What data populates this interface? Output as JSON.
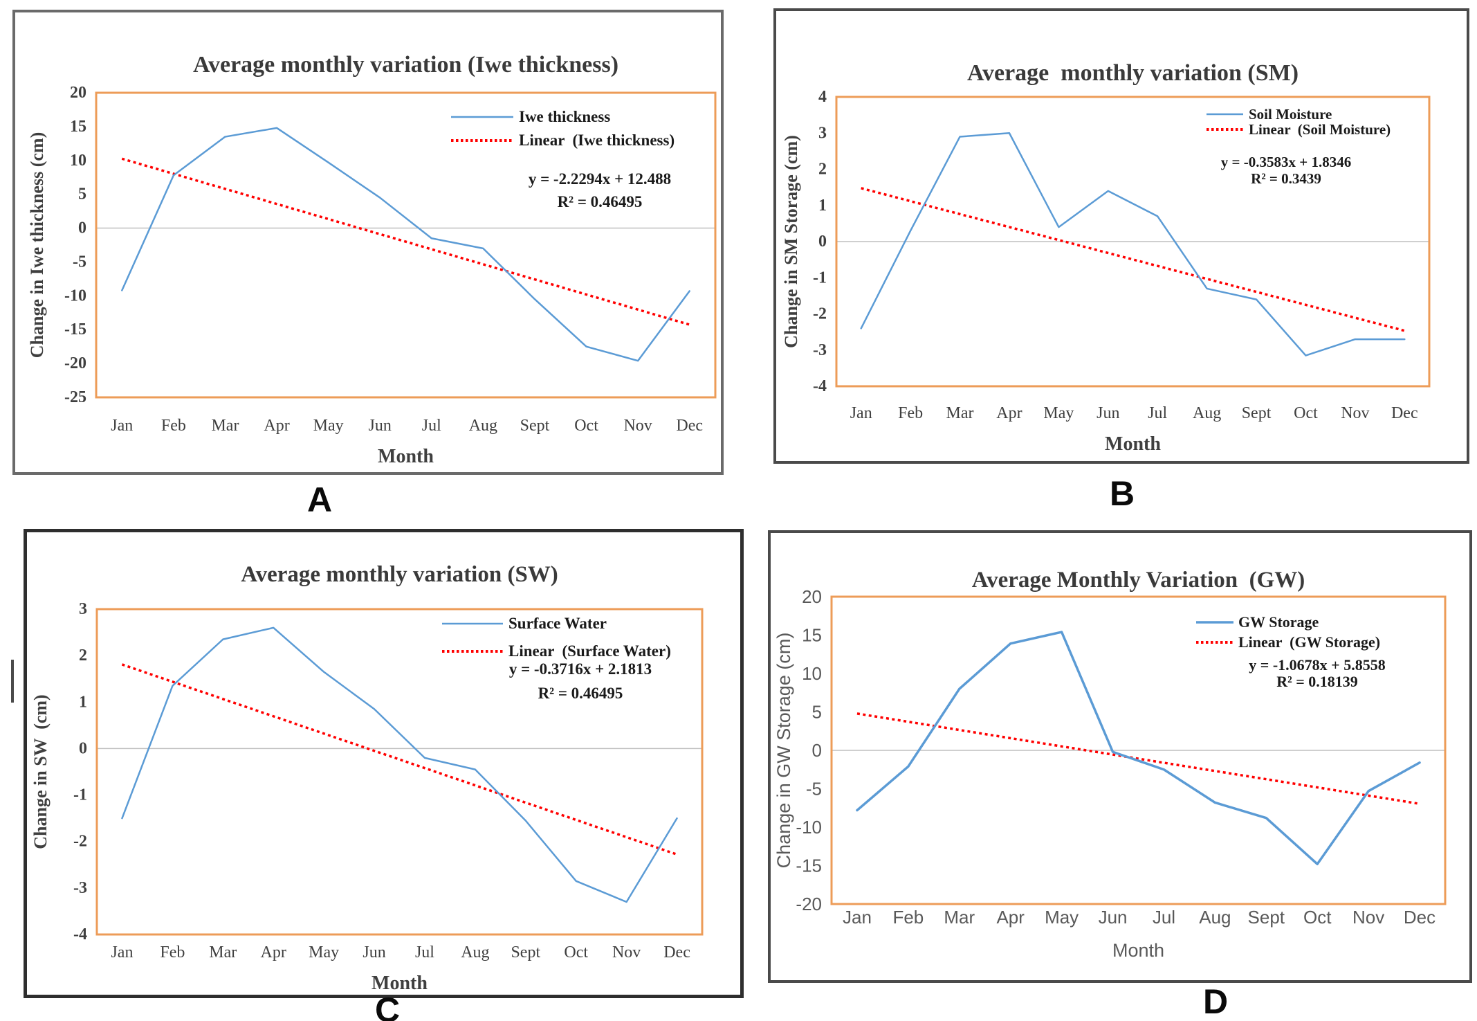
{
  "figure": {
    "type": "multi-panel-line-charts",
    "panel_labels": [
      "A",
      "B",
      "C",
      "D"
    ]
  },
  "colors": {
    "series_line": "#5B9BD5",
    "trend_line": "#FF0000",
    "plot_frame": "#ED9C58",
    "zero_gridline": "#BFBFBF",
    "title_text": "#3a3a3a",
    "axis_text_serif": "#3f3f3f",
    "axis_text_sans": "#595959",
    "legend_text": "#1a1a1a"
  },
  "chart_data": [
    {
      "id": "A",
      "type": "line",
      "panel_label": "A",
      "title": "Average monthly variation (Iwe thickness)",
      "xlabel": "Month",
      "ylabel": "Change in Iwe thickness (cm)",
      "ylim": [
        -25,
        20
      ],
      "ytick_step": 5,
      "gridlines": "zero-only",
      "legend_position": "top-right",
      "categories": [
        "Jan",
        "Feb",
        "Mar",
        "Apr",
        "May",
        "Jun",
        "Jul",
        "Aug",
        "Sept",
        "Oct",
        "Nov",
        "Dec"
      ],
      "series_name": "Iwe thickness",
      "values": [
        -9.2,
        7.8,
        13.5,
        14.8,
        9.7,
        4.5,
        -1.5,
        -3.0,
        -10.5,
        -17.5,
        -19.6,
        -9.3
      ],
      "trend_name": "Linear  (Iwe thickness)",
      "trend": {
        "slope": -2.2294,
        "intercept": 12.488
      },
      "equation": "y = -2.2294x + 12.488",
      "r_squared": "R² = 0.46495"
    },
    {
      "id": "B",
      "type": "line",
      "panel_label": "B",
      "title": "Average  monthly variation (SM)",
      "xlabel": "Month",
      "ylabel": "Change in SM Storage (cm)",
      "ylim": [
        -4,
        4
      ],
      "ytick_step": 1,
      "gridlines": "zero-only",
      "legend_position": "top-right",
      "categories": [
        "Jan",
        "Feb",
        "Mar",
        "Apr",
        "May",
        "Jun",
        "Jul",
        "Aug",
        "Sept",
        "Oct",
        "Nov",
        "Dec"
      ],
      "series_name": "Soil Moisture",
      "values": [
        -2.4,
        0.3,
        2.9,
        3.0,
        0.4,
        1.4,
        0.7,
        -1.3,
        -1.6,
        -3.15,
        -2.7,
        -2.7
      ],
      "trend_name": "Linear  (Soil Moisture)",
      "trend": {
        "slope": -0.3583,
        "intercept": 1.8346
      },
      "equation": "y = -0.3583x + 1.8346",
      "r_squared": "R² = 0.3439"
    },
    {
      "id": "C",
      "type": "line",
      "panel_label": "C",
      "title": "Average monthly variation (SW)",
      "xlabel": "Month",
      "ylabel": "Change in SW  (cm)",
      "ylim": [
        -4,
        3
      ],
      "ytick_step": 1,
      "gridlines": "zero-only",
      "legend_position": "top-right",
      "categories": [
        "Jan",
        "Feb",
        "Mar",
        "Apr",
        "May",
        "Jun",
        "Jul",
        "Aug",
        "Sept",
        "Oct",
        "Nov",
        "Dec"
      ],
      "series_name": "Surface Water",
      "values": [
        -1.5,
        1.35,
        2.35,
        2.6,
        1.65,
        0.85,
        -0.2,
        -0.45,
        -1.55,
        -2.85,
        -3.3,
        -1.5
      ],
      "trend_name": "Linear  (Surface Water)",
      "trend": {
        "slope": -0.3716,
        "intercept": 2.1813
      },
      "equation": "y = -0.3716x + 2.1813",
      "r_squared": "R² = 0.46495"
    },
    {
      "id": "D",
      "type": "line",
      "panel_label": "D",
      "title": "Average Monthly Variation  (GW)",
      "xlabel": "Month",
      "ylabel": "Change in GW Storage (cm)",
      "ylim": [
        -20,
        20
      ],
      "ytick_step": 5,
      "gridlines": "zero-only",
      "legend_position": "top-right",
      "categories": [
        "Jan",
        "Feb",
        "Mar",
        "Apr",
        "May",
        "Jun",
        "Jul",
        "Aug",
        "Sept",
        "Oct",
        "Nov",
        "Dec"
      ],
      "series_name": "GW Storage",
      "values": [
        -7.8,
        -2.1,
        8.0,
        13.9,
        15.4,
        -0.2,
        -2.5,
        -6.8,
        -8.8,
        -14.8,
        -5.3,
        -1.6
      ],
      "trend_name": "Linear  (GW Storage)",
      "trend": {
        "slope": -1.0678,
        "intercept": 5.8558
      },
      "equation": "y = -1.0678x + 5.8558",
      "r_squared": "R² = 0.18139"
    }
  ]
}
